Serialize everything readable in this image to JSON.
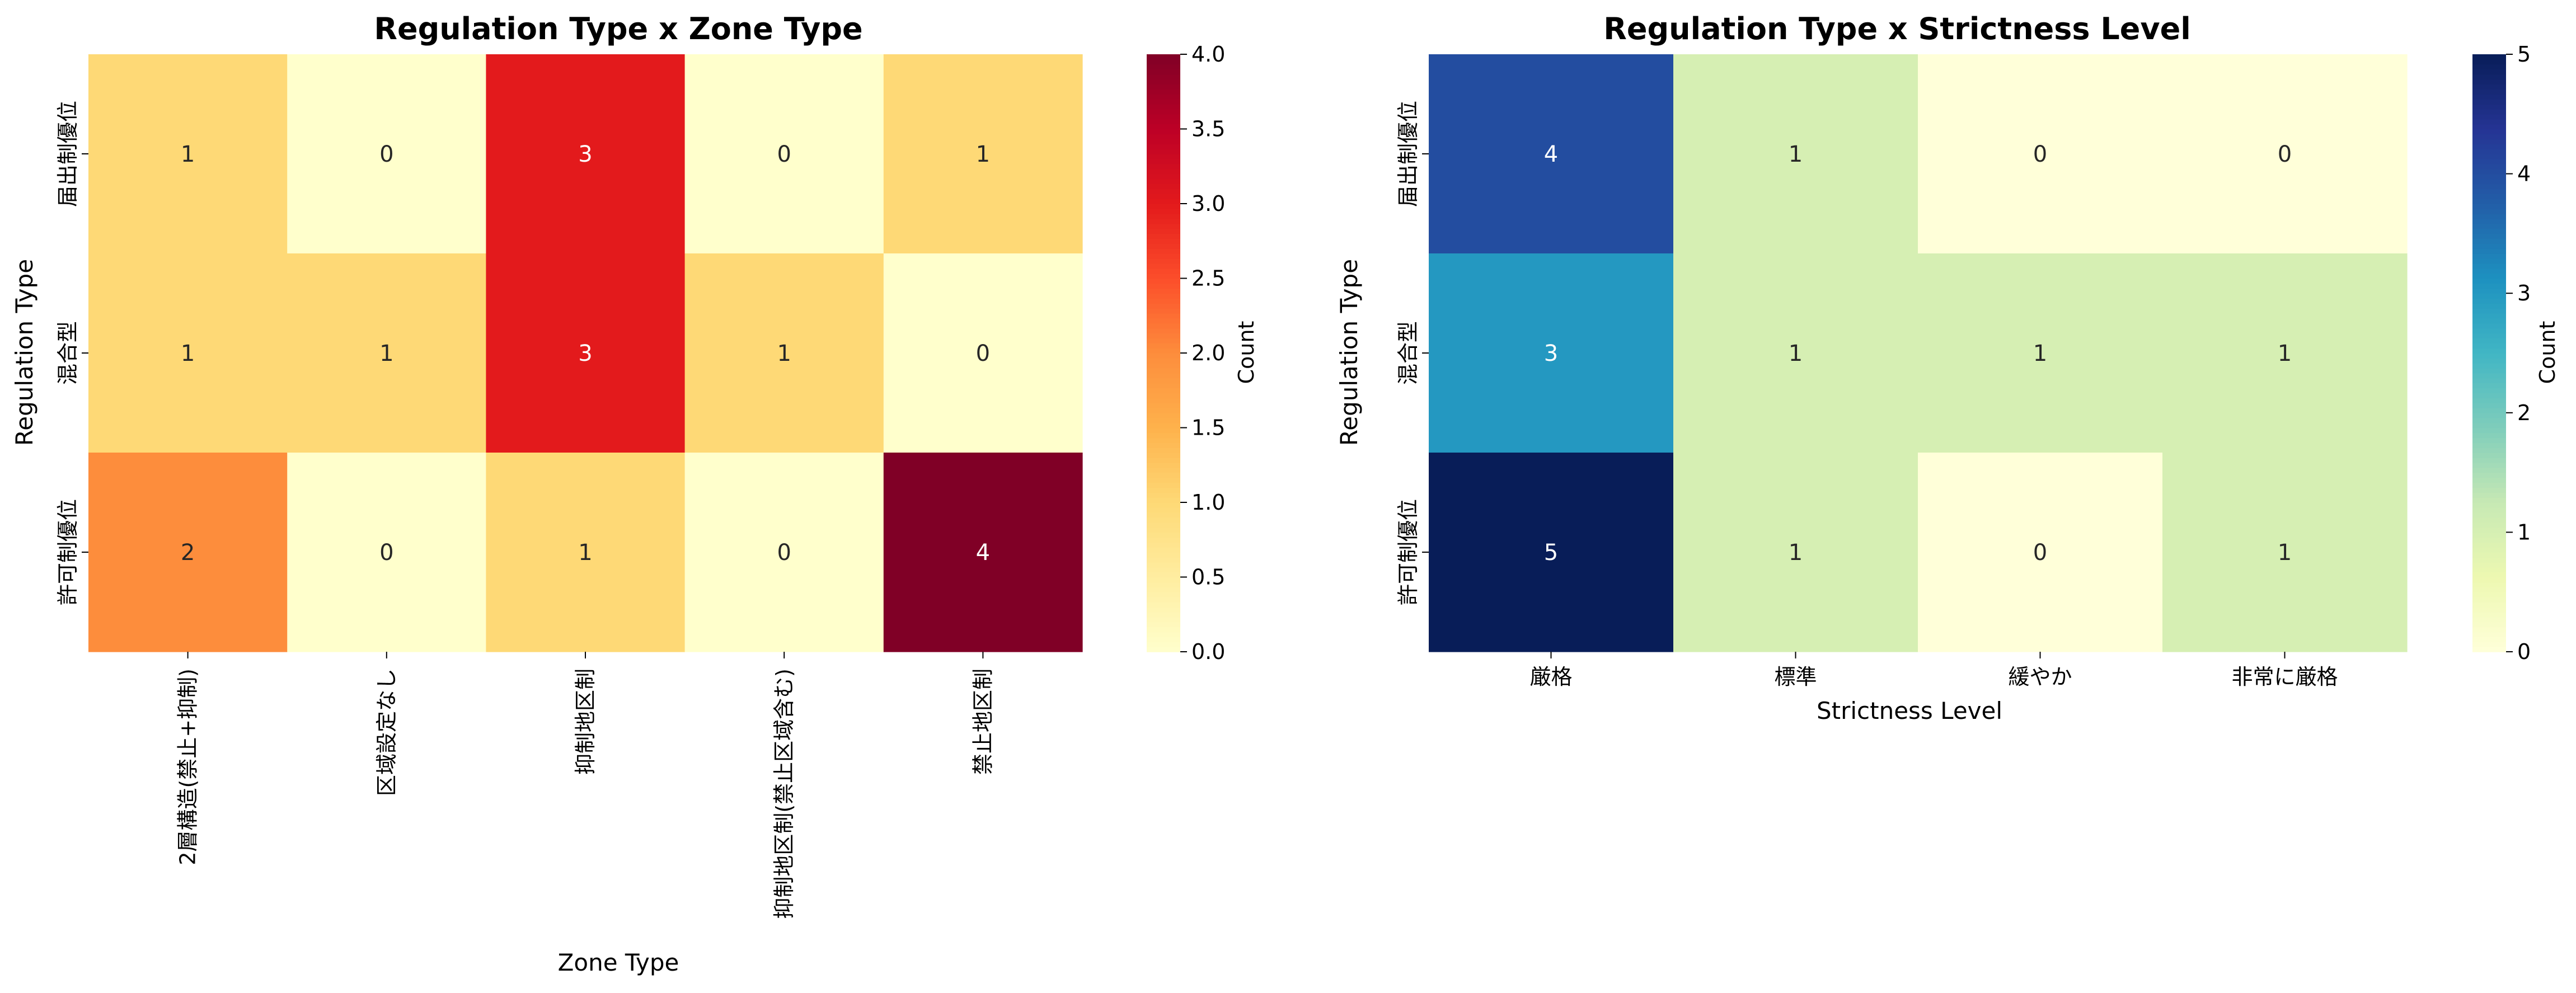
{
  "chart_data": [
    {
      "type": "heatmap",
      "title": "Regulation Type x Zone Type",
      "xlabel": "Zone Type",
      "ylabel": "Regulation Type",
      "x_categories": [
        "2層構造(禁止+抑制)",
        "区域設定なし",
        "抑制地区制",
        "抑制地区制(禁止区域含む)",
        "禁止地区制"
      ],
      "y_categories": [
        "届出制優位",
        "混合型",
        "許可制優位"
      ],
      "values": [
        [
          1,
          0,
          3,
          0,
          1
        ],
        [
          1,
          1,
          3,
          1,
          0
        ],
        [
          2,
          0,
          1,
          0,
          4
        ]
      ],
      "value_labels": [
        [
          "1",
          "0",
          "3",
          "0",
          "1"
        ],
        [
          "1",
          "1",
          "3",
          "1",
          "0"
        ],
        [
          "2",
          "0",
          "1",
          "0",
          "4"
        ]
      ],
      "colormap": "YlOrRd",
      "colorbar_label": "Count",
      "vmin": 0,
      "vmax": 4,
      "colorbar_ticks": [
        "0.0",
        "0.5",
        "1.0",
        "1.5",
        "2.0",
        "2.5",
        "3.0",
        "3.5",
        "4.0"
      ]
    },
    {
      "type": "heatmap",
      "title": "Regulation Type x Strictness Level",
      "xlabel": "Strictness Level",
      "ylabel": "Regulation Type",
      "x_categories": [
        "厳格",
        "標準",
        "緩やか",
        "非常に厳格"
      ],
      "y_categories": [
        "届出制優位",
        "混合型",
        "許可制優位"
      ],
      "values": [
        [
          4,
          1,
          0,
          0
        ],
        [
          3,
          1,
          1,
          1
        ],
        [
          5,
          1,
          0,
          1
        ]
      ],
      "value_labels": [
        [
          "4",
          "1",
          "0",
          "0"
        ],
        [
          "3",
          "1",
          "1",
          "1"
        ],
        [
          "5",
          "1",
          "0",
          "1"
        ]
      ],
      "colormap": "YlGnBu",
      "colorbar_label": "Count",
      "vmin": 0,
      "vmax": 5,
      "colorbar_ticks": [
        "0",
        "1",
        "2",
        "3",
        "4",
        "5"
      ]
    }
  ]
}
